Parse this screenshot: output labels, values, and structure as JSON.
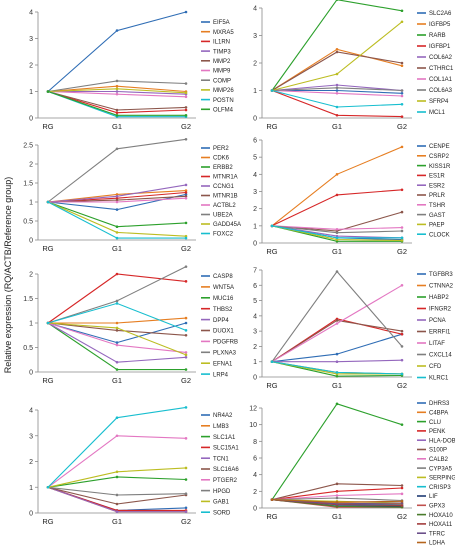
{
  "ylabel": "Relative expression (RQ/ACTB/Reference group)",
  "chart_data": [
    {
      "type": "line",
      "x": [
        "RG",
        "G1",
        "G2"
      ],
      "ylim": [
        0,
        4
      ],
      "yticks": [
        0,
        1,
        2,
        3,
        4
      ],
      "legend": "right",
      "series": [
        {
          "name": "EIF5A",
          "color": "#2f6db5",
          "values": [
            1,
            3.3,
            4.0
          ]
        },
        {
          "name": "MXRA5",
          "color": "#e67e22",
          "values": [
            1,
            1.2,
            1.0
          ]
        },
        {
          "name": "IL1RN",
          "color": "#d62728",
          "values": [
            1,
            0.2,
            0.3
          ]
        },
        {
          "name": "TIMP3",
          "color": "#9467bd",
          "values": [
            1,
            1.0,
            0.9
          ]
        },
        {
          "name": "MMP2",
          "color": "#8c564b",
          "values": [
            1,
            0.3,
            0.4
          ]
        },
        {
          "name": "MMP9",
          "color": "#e377c2",
          "values": [
            1,
            0.9,
            0.8
          ]
        },
        {
          "name": "COMP",
          "color": "#7f7f7f",
          "values": [
            1,
            1.4,
            1.3
          ]
        },
        {
          "name": "MMP26",
          "color": "#bcbd22",
          "values": [
            1,
            1.1,
            0.95
          ]
        },
        {
          "name": "POSTN",
          "color": "#17becf",
          "values": [
            1,
            0.05,
            0.05
          ]
        },
        {
          "name": "OLFM4",
          "color": "#2ca02c",
          "values": [
            1,
            0.1,
            0.1
          ]
        }
      ]
    },
    {
      "type": "line",
      "x": [
        "RG",
        "G1",
        "G2"
      ],
      "ylim": [
        0,
        4
      ],
      "yticks": [
        0,
        1,
        2,
        3,
        4
      ],
      "legend": "right",
      "series": [
        {
          "name": "SLC2A6",
          "color": "#2f6db5",
          "values": [
            1,
            1.0,
            0.9
          ]
        },
        {
          "name": "IGFBP5",
          "color": "#e67e22",
          "values": [
            1,
            2.5,
            1.9
          ]
        },
        {
          "name": "RARB",
          "color": "#2ca02c",
          "values": [
            1,
            4.3,
            3.9
          ]
        },
        {
          "name": "IGFBP1",
          "color": "#d62728",
          "values": [
            1,
            0.1,
            0.05
          ]
        },
        {
          "name": "COL6A2",
          "color": "#9467bd",
          "values": [
            1,
            1.2,
            1.0
          ]
        },
        {
          "name": "CTHRC1",
          "color": "#8c564b",
          "values": [
            1,
            2.4,
            2.0
          ]
        },
        {
          "name": "COL1A1",
          "color": "#e377c2",
          "values": [
            1,
            0.9,
            0.8
          ]
        },
        {
          "name": "COL6A3",
          "color": "#7f7f7f",
          "values": [
            1,
            1.1,
            1.0
          ]
        },
        {
          "name": "SFRP4",
          "color": "#bcbd22",
          "values": [
            1,
            1.6,
            3.5
          ]
        },
        {
          "name": "MCL1",
          "color": "#17becf",
          "values": [
            1,
            0.4,
            0.5
          ]
        }
      ]
    },
    {
      "type": "line",
      "x": [
        "RG",
        "G1",
        "G2"
      ],
      "ylim": [
        0,
        2.5
      ],
      "yticks": [
        0,
        0.5,
        1,
        1.5,
        2,
        2.5
      ],
      "legend": "right",
      "series": [
        {
          "name": "PER2",
          "color": "#2f6db5",
          "values": [
            1,
            0.8,
            1.2
          ]
        },
        {
          "name": "CDK6",
          "color": "#e67e22",
          "values": [
            1,
            1.2,
            1.3
          ]
        },
        {
          "name": "ERBB2",
          "color": "#2ca02c",
          "values": [
            1,
            0.35,
            0.45
          ]
        },
        {
          "name": "MTNR1A",
          "color": "#d62728",
          "values": [
            1,
            1.1,
            1.25
          ]
        },
        {
          "name": "CCNG1",
          "color": "#9467bd",
          "values": [
            1,
            1.15,
            1.45
          ]
        },
        {
          "name": "MTNR1B",
          "color": "#8c564b",
          "values": [
            1,
            1.05,
            1.15
          ]
        },
        {
          "name": "ACTBL2",
          "color": "#e377c2",
          "values": [
            1,
            1.0,
            1.1
          ]
        },
        {
          "name": "UBE2A",
          "color": "#7f7f7f",
          "values": [
            1,
            2.4,
            2.65
          ]
        },
        {
          "name": "GADD45A",
          "color": "#bcbd22",
          "values": [
            1,
            0.2,
            0.1
          ]
        },
        {
          "name": "FOXC2",
          "color": "#17becf",
          "values": [
            1,
            0.05,
            0.05
          ]
        }
      ]
    },
    {
      "type": "line",
      "x": [
        "RG",
        "G1",
        "G2"
      ],
      "ylim": [
        0,
        6
      ],
      "yticks": [
        0,
        1,
        2,
        3,
        4,
        5,
        6
      ],
      "legend": "right",
      "series": [
        {
          "name": "CENPE",
          "color": "#2f6db5",
          "values": [
            1,
            0.3,
            0.2
          ]
        },
        {
          "name": "CSRP2",
          "color": "#e67e22",
          "values": [
            1,
            4.0,
            5.6
          ]
        },
        {
          "name": "KISS1R",
          "color": "#2ca02c",
          "values": [
            1,
            0.1,
            0.1
          ]
        },
        {
          "name": "ES1R",
          "color": "#d62728",
          "values": [
            1,
            2.8,
            3.1
          ]
        },
        {
          "name": "ESR2",
          "color": "#9467bd",
          "values": [
            1,
            0.4,
            0.3
          ]
        },
        {
          "name": "PRLR",
          "color": "#8c564b",
          "values": [
            1,
            0.7,
            1.8
          ]
        },
        {
          "name": "TSHR",
          "color": "#e377c2",
          "values": [
            1,
            0.8,
            0.9
          ]
        },
        {
          "name": "GAST",
          "color": "#7f7f7f",
          "values": [
            1,
            0.6,
            0.7
          ]
        },
        {
          "name": "PAEP",
          "color": "#bcbd22",
          "values": [
            1,
            0.2,
            0.15
          ]
        },
        {
          "name": "CLOCK",
          "color": "#17becf",
          "values": [
            1,
            0.3,
            0.3
          ]
        }
      ]
    },
    {
      "type": "line",
      "x": [
        "RG",
        "G1",
        "G2"
      ],
      "ylim": [
        0,
        2
      ],
      "yticks": [
        0,
        0.5,
        1,
        1.5,
        2
      ],
      "legend": "right",
      "series": [
        {
          "name": "CASP8",
          "color": "#2f6db5",
          "values": [
            1,
            0.6,
            1.0
          ]
        },
        {
          "name": "WNT5A",
          "color": "#e67e22",
          "values": [
            1,
            1.0,
            1.1
          ]
        },
        {
          "name": "MUC16",
          "color": "#2ca02c",
          "values": [
            1,
            0.05,
            0.05
          ]
        },
        {
          "name": "THBS2",
          "color": "#d62728",
          "values": [
            1,
            2.0,
            1.85
          ]
        },
        {
          "name": "DPP4",
          "color": "#9467bd",
          "values": [
            1,
            0.2,
            0.3
          ]
        },
        {
          "name": "DUOX1",
          "color": "#8c564b",
          "values": [
            1,
            0.85,
            0.75
          ]
        },
        {
          "name": "PDGFRB",
          "color": "#e377c2",
          "values": [
            1,
            0.55,
            0.4
          ]
        },
        {
          "name": "PLXNA3",
          "color": "#7f7f7f",
          "values": [
            1,
            1.45,
            2.15
          ]
        },
        {
          "name": "EFNA1",
          "color": "#bcbd22",
          "values": [
            1,
            0.9,
            0.35
          ]
        },
        {
          "name": "LRP4",
          "color": "#17becf",
          "values": [
            1,
            1.4,
            0.85
          ]
        }
      ]
    },
    {
      "type": "line",
      "x": [
        "RG",
        "G1",
        "G2"
      ],
      "ylim": [
        0,
        7
      ],
      "yticks": [
        0,
        1,
        2,
        3,
        4,
        5,
        6,
        7
      ],
      "legend": "right",
      "series": [
        {
          "name": "TGFBR3",
          "color": "#2f6db5",
          "values": [
            1,
            1.5,
            2.8
          ]
        },
        {
          "name": "CTNNA2",
          "color": "#e67e22",
          "values": [
            1,
            0.3,
            0.2
          ]
        },
        {
          "name": "HABP2",
          "color": "#2ca02c",
          "values": [
            1,
            0.05,
            0.1
          ]
        },
        {
          "name": "IFNGR2",
          "color": "#d62728",
          "values": [
            1,
            3.8,
            2.8
          ]
        },
        {
          "name": "PCNA",
          "color": "#9467bd",
          "values": [
            1,
            1.0,
            1.1
          ]
        },
        {
          "name": "ERRFI1",
          "color": "#8c564b",
          "values": [
            1,
            3.7,
            3.0
          ]
        },
        {
          "name": "LITAF",
          "color": "#e377c2",
          "values": [
            1,
            3.5,
            6.0
          ]
        },
        {
          "name": "CXCL14",
          "color": "#7f7f7f",
          "values": [
            1,
            6.9,
            2.0
          ]
        },
        {
          "name": "CFD",
          "color": "#bcbd22",
          "values": [
            1,
            0.2,
            0.2
          ]
        },
        {
          "name": "KLRC1",
          "color": "#17becf",
          "values": [
            1,
            0.3,
            0.2
          ]
        }
      ]
    },
    {
      "type": "line",
      "x": [
        "RG",
        "G1",
        "G2"
      ],
      "ylim": [
        0,
        4
      ],
      "yticks": [
        0,
        1,
        2,
        3,
        4
      ],
      "legend": "right",
      "series": [
        {
          "name": "NR4A2",
          "color": "#2f6db5",
          "values": [
            1,
            0.1,
            0.2
          ]
        },
        {
          "name": "LMB3",
          "color": "#e67e22",
          "values": [
            1,
            0.05,
            0.05
          ]
        },
        {
          "name": "SLC1A1",
          "color": "#2ca02c",
          "values": [
            1,
            1.4,
            1.3
          ]
        },
        {
          "name": "SLC15A1",
          "color": "#d62728",
          "values": [
            1,
            0.1,
            0.1
          ]
        },
        {
          "name": "TCN1",
          "color": "#9467bd",
          "values": [
            1,
            0.05,
            0.05
          ]
        },
        {
          "name": "SLC16A6",
          "color": "#8c564b",
          "values": [
            1,
            0.35,
            0.7
          ]
        },
        {
          "name": "PTGER2",
          "color": "#e377c2",
          "values": [
            1,
            3.0,
            2.9
          ]
        },
        {
          "name": "HPGD",
          "color": "#7f7f7f",
          "values": [
            1,
            0.7,
            0.75
          ]
        },
        {
          "name": "GAB1",
          "color": "#bcbd22",
          "values": [
            1,
            1.6,
            1.75
          ]
        },
        {
          "name": "SORD",
          "color": "#17becf",
          "values": [
            1,
            3.7,
            4.1
          ]
        }
      ]
    },
    {
      "type": "line",
      "x": [
        "RG",
        "G1",
        "G2"
      ],
      "ylim": [
        0,
        12
      ],
      "yticks": [
        0,
        2,
        4,
        6,
        8,
        10,
        12
      ],
      "legend": "right",
      "series": [
        {
          "name": "DHRS3",
          "color": "#2f6db5",
          "values": [
            1,
            0.5,
            0.4
          ]
        },
        {
          "name": "C4BPA",
          "color": "#e67e22",
          "values": [
            1,
            0.6,
            0.5
          ]
        },
        {
          "name": "CLU",
          "color": "#2ca02c",
          "values": [
            1,
            12.5,
            10.0
          ]
        },
        {
          "name": "PENK",
          "color": "#d62728",
          "values": [
            1,
            2.0,
            2.4
          ]
        },
        {
          "name": "HLA-DOB",
          "color": "#9467bd",
          "values": [
            1,
            0.3,
            0.3
          ]
        },
        {
          "name": "S100P",
          "color": "#8c564b",
          "values": [
            1,
            2.9,
            2.7
          ]
        },
        {
          "name": "CALB2",
          "color": "#e377c2",
          "values": [
            1,
            1.5,
            1.7
          ]
        },
        {
          "name": "CYP3A5",
          "color": "#7f7f7f",
          "values": [
            1,
            1.2,
            0.9
          ]
        },
        {
          "name": "SERPING1",
          "color": "#bcbd22",
          "values": [
            1,
            0.8,
            0.6
          ]
        },
        {
          "name": "CRISP3",
          "color": "#17becf",
          "values": [
            1,
            0.3,
            0.2
          ]
        },
        {
          "name": "LIF",
          "color": "#1f3b73",
          "values": [
            1,
            0.2,
            0.2
          ]
        },
        {
          "name": "GPX3",
          "color": "#c0504d",
          "values": [
            1,
            0.1,
            0.1
          ]
        },
        {
          "name": "HOXA10",
          "color": "#4a7c2c",
          "values": [
            1,
            0.2,
            0.1
          ]
        },
        {
          "name": "HOXA11",
          "color": "#a33d3d",
          "values": [
            1,
            0.4,
            0.3
          ]
        },
        {
          "name": "TFRC",
          "color": "#6b4f8a",
          "values": [
            1,
            0.5,
            0.6
          ]
        },
        {
          "name": "LDHA",
          "color": "#b5651d",
          "values": [
            1,
            0.7,
            0.8
          ]
        }
      ]
    }
  ]
}
